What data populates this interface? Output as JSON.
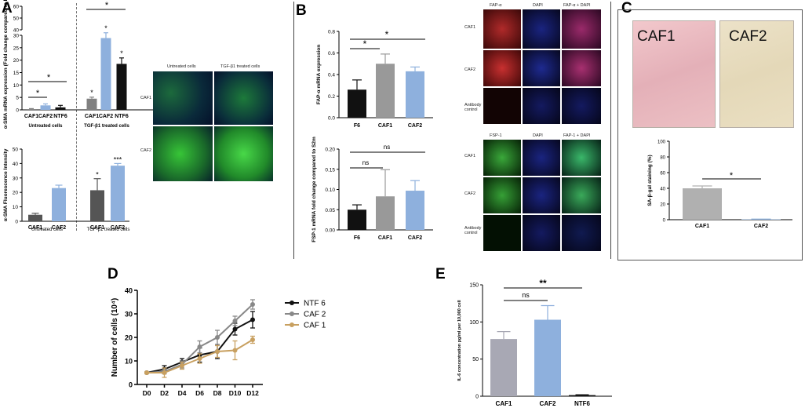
{
  "panels": {
    "A": "A",
    "B": "B",
    "C": "C",
    "D": "D",
    "E": "E"
  },
  "colors": {
    "black": "#111111",
    "gray": "#808080",
    "blue": "#8eb0dd",
    "tan": "#c8a060",
    "green": "#3ac23a",
    "red": "#c63636",
    "dapi": "#2233cc"
  },
  "micro_A": {
    "col_labels": [
      "Untreated cells",
      "TGF-β1 treated cells"
    ],
    "row_labels": [
      "CAF1",
      "CAF2"
    ]
  },
  "micro_B1": {
    "col_labels": [
      "FAP-α",
      "DAPI",
      "FAP-α + DAPI"
    ],
    "row_labels": [
      "CAF1",
      "CAF2",
      "Antibody control"
    ]
  },
  "micro_B2": {
    "col_labels": [
      "FSP-1",
      "DAPI",
      "FAP-1 + DAPI"
    ],
    "row_labels": [
      "CAF1",
      "CAF2",
      "Antibody control"
    ]
  },
  "photos_C": {
    "left": "CAF1",
    "right": "CAF2"
  },
  "chart_data": [
    {
      "id": "A1",
      "type": "bar",
      "ylabel": "α-SMA mRNA expression (Fold change compared to F2m)",
      "group_labels": [
        "Untreated cells",
        "TGF-β1 treated cells"
      ],
      "categories": [
        "CAF1",
        "CAF2",
        "NTF6",
        "CAF1",
        "CAF2",
        "NTF6"
      ],
      "values": [
        0.3,
        1.8,
        1.0,
        4.5,
        33,
        18.5
      ],
      "errors": [
        0.2,
        0.6,
        0.8,
        0.6,
        4.5,
        2.4
      ],
      "colors": [
        "#808080",
        "#8eb0dd",
        "#111111",
        "#808080",
        "#8eb0dd",
        "#111111"
      ],
      "yticks": [
        "0",
        "5",
        "10",
        "15",
        "20",
        "25",
        "30",
        "40",
        "50",
        "60"
      ],
      "ylim": [
        0,
        60
      ],
      "axis_break": true,
      "annotations": [
        "*",
        "*",
        "*",
        "*",
        "*",
        "*"
      ]
    },
    {
      "id": "A2",
      "type": "bar",
      "ylabel": "α-SMA Fluorescence Intensity",
      "group_labels": [
        "Untreated cells",
        "TGF-β1 treated cells"
      ],
      "categories": [
        "CAF1",
        "CAF2",
        "CAF1",
        "CAF2"
      ],
      "values": [
        4.5,
        23,
        21.5,
        38.5
      ],
      "errors": [
        1.0,
        2.0,
        8.0,
        1.5
      ],
      "colors": [
        "#555555",
        "#8eb0dd",
        "#555555",
        "#8eb0dd"
      ],
      "yticks": [
        "0",
        "10",
        "20",
        "30",
        "40",
        "50"
      ],
      "ylim": [
        0,
        50
      ],
      "annotations": [
        "*",
        "***"
      ]
    },
    {
      "id": "B1",
      "type": "bar",
      "ylabel": "FAP-α mRNA expression",
      "categories": [
        "F6",
        "CAF1",
        "CAF2"
      ],
      "values": [
        0.26,
        0.5,
        0.43
      ],
      "errors": [
        0.09,
        0.09,
        0.04
      ],
      "colors": [
        "#111111",
        "#999999",
        "#8eb0dd"
      ],
      "yticks": [
        "0.0",
        "0.2",
        "0.4",
        "0.6",
        "0.8"
      ],
      "ylim": [
        0,
        0.8
      ],
      "annotations": [
        "*",
        "*"
      ]
    },
    {
      "id": "B2",
      "type": "bar",
      "ylabel": "FSP-1 mRNA fold change compared to S2m",
      "categories": [
        "F6",
        "CAF1",
        "CAF2"
      ],
      "values": [
        0.05,
        0.083,
        0.097
      ],
      "errors": [
        0.012,
        0.066,
        0.025
      ],
      "colors": [
        "#111111",
        "#999999",
        "#8eb0dd"
      ],
      "yticks": [
        "0.00",
        "0.05",
        "0.10",
        "0.15",
        "0.20"
      ],
      "ylim": [
        0,
        0.2
      ],
      "annotations": [
        "ns",
        "ns"
      ]
    },
    {
      "id": "C",
      "type": "bar",
      "ylabel": "SA-β-gal staining (%)",
      "categories": [
        "CAF1",
        "CAF2"
      ],
      "values": [
        40,
        0.5
      ],
      "errors": [
        3,
        0.3
      ],
      "colors": [
        "#b0b0b0",
        "#8eb0dd"
      ],
      "yticks": [
        "0",
        "20",
        "40",
        "60",
        "80",
        "100"
      ],
      "ylim": [
        0,
        100
      ],
      "annotations": [
        "*"
      ]
    },
    {
      "id": "D",
      "type": "line",
      "ylabel": "Number of cells (10⁴)",
      "xlabel": "",
      "x": [
        "D0",
        "D2",
        "D4",
        "D6",
        "D8",
        "D10",
        "D12"
      ],
      "yticks": [
        "0",
        "10",
        "20",
        "30",
        "40"
      ],
      "ylim": [
        0,
        40
      ],
      "series": [
        {
          "name": "NTF 6",
          "color": "#111111",
          "values": [
            5,
            6.5,
            9.5,
            12.5,
            14,
            23.5,
            27.5
          ],
          "errors": [
            0.3,
            1.5,
            1.5,
            3,
            3,
            2.5,
            3.5
          ]
        },
        {
          "name": "CAF 2",
          "color": "#888888",
          "values": [
            5,
            5.5,
            8.5,
            16,
            20,
            27,
            34
          ],
          "errors": [
            0.3,
            1,
            1.5,
            2.5,
            3,
            2,
            2
          ]
        },
        {
          "name": "CAF 1",
          "color": "#c8a060",
          "values": [
            5,
            5,
            8,
            11,
            14,
            14.5,
            19
          ],
          "errors": [
            0.3,
            2,
            1.5,
            2,
            2.5,
            4,
            1.5
          ]
        }
      ]
    },
    {
      "id": "E",
      "type": "bar",
      "ylabel": "IL-6 concentration pg/ml per 10,000 cell",
      "categories": [
        "CAF1",
        "CAF2",
        "NTF6"
      ],
      "values": [
        77,
        103,
        1.5
      ],
      "errors": [
        10,
        19,
        0.5
      ],
      "colors": [
        "#a8a8b4",
        "#8eb0dd",
        "#111111"
      ],
      "yticks": [
        "0",
        "50",
        "100",
        "150"
      ],
      "ylim": [
        0,
        150
      ],
      "annotations": [
        "ns",
        "**"
      ]
    }
  ]
}
